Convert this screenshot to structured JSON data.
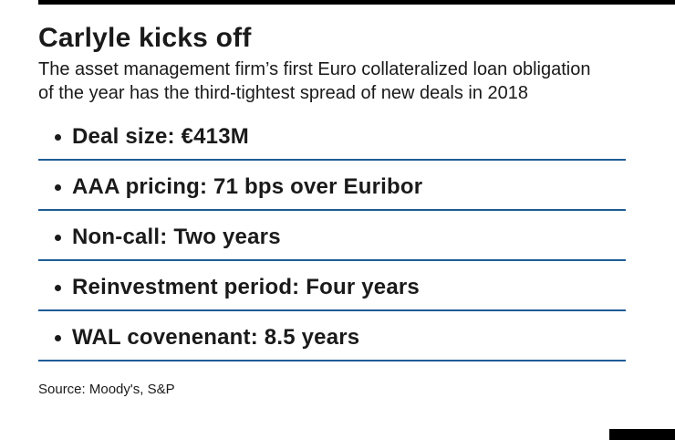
{
  "accent_color": "#1f5c97",
  "header": {
    "title": "Carlyle kicks off",
    "subtitle": "The asset management firm’s first Euro collateralized loan obligation of the year has the third-tightest spread of new deals in 2018"
  },
  "bullets": [
    "Deal size: €413M",
    "AAA pricing: 71 bps over Euribor",
    "Non-call: Two years",
    "Reinvestment period: Four years",
    "WAL covenenant: 8.5 years"
  ],
  "footer": {
    "source": "Source: Moody's, S&P"
  }
}
